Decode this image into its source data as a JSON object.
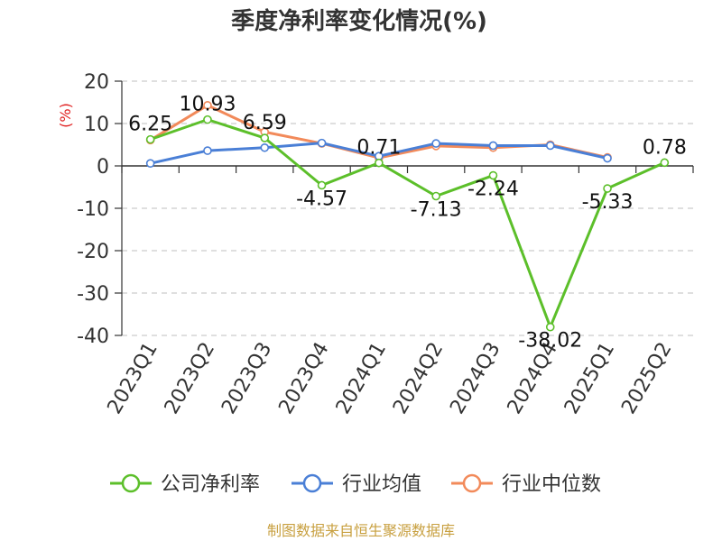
{
  "chart_data": {
    "type": "line",
    "title": "季度净利率变化情况(%)",
    "ylabel": "(%)",
    "categories": [
      "2023Q1",
      "2023Q2",
      "2023Q3",
      "2023Q4",
      "2024Q1",
      "2024Q2",
      "2024Q3",
      "2024Q4",
      "2025Q1",
      "2025Q2"
    ],
    "ylim": [
      -40,
      20
    ],
    "yticks": [
      20,
      10,
      0,
      -10,
      -20,
      -30,
      -40
    ],
    "grid": true,
    "legend_position": "bottom",
    "series": [
      {
        "name": "公司净利率",
        "color": "#5cbf2a",
        "values": [
          6.25,
          10.93,
          6.59,
          -4.57,
          0.71,
          -7.13,
          -2.24,
          -38.02,
          -5.33,
          0.78
        ],
        "labels": [
          "6.25",
          "10.93",
          "6.59",
          "-4.57",
          "0.71",
          "-7.13",
          "-2.24",
          "-38.02",
          "-5.33",
          "0.78"
        ]
      },
      {
        "name": "行业均值",
        "color": "#4a7fd6",
        "values": [
          0.6,
          3.6,
          4.3,
          5.4,
          2.3,
          5.3,
          4.8,
          4.8,
          1.8,
          null
        ]
      },
      {
        "name": "行业中位数",
        "color": "#f28a5a",
        "values": [
          6.1,
          14.3,
          8.0,
          5.3,
          1.9,
          4.7,
          4.3,
          5.0,
          2.0,
          null
        ]
      }
    ]
  },
  "source": "制图数据来自恒生聚源数据库",
  "colors": {
    "unit": "#e02020",
    "source": "#c8a040",
    "grid": "#cccccc",
    "axis": "#333333"
  }
}
